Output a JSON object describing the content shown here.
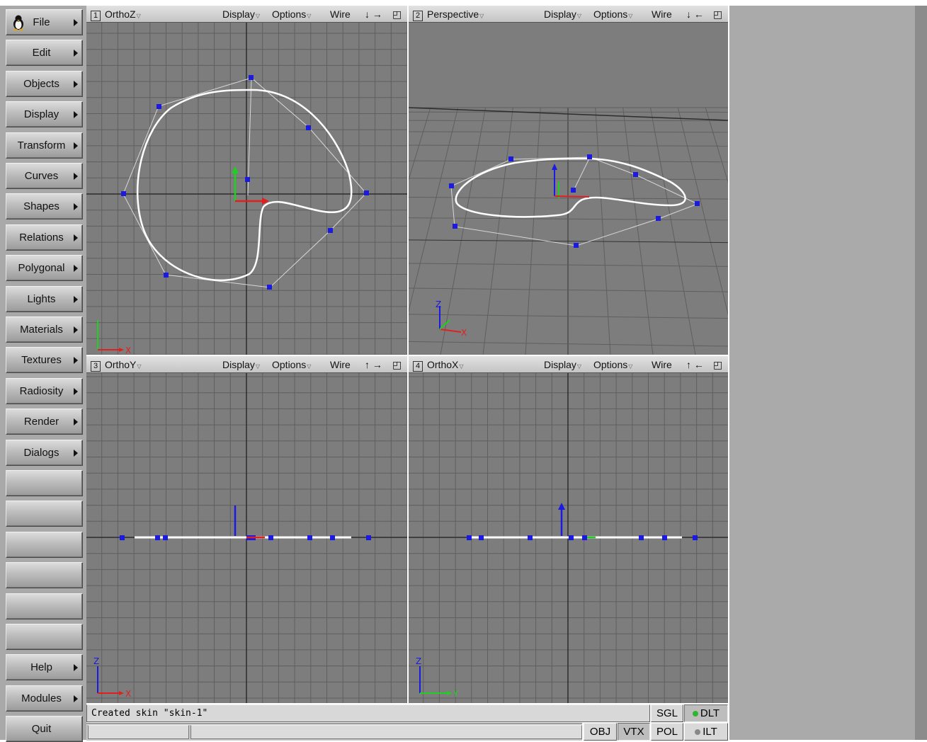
{
  "menu": [
    {
      "label": "File",
      "arrow": true,
      "icon": "tux-icon"
    },
    {
      "label": "Edit",
      "arrow": true
    },
    {
      "label": "Objects",
      "arrow": true
    },
    {
      "label": "Display",
      "arrow": true
    },
    {
      "label": "Transform",
      "arrow": true
    },
    {
      "label": "Curves",
      "arrow": true
    },
    {
      "label": "Shapes",
      "arrow": true
    },
    {
      "label": "Relations",
      "arrow": true
    },
    {
      "label": "Polygonal",
      "arrow": true
    },
    {
      "label": "Lights",
      "arrow": true
    },
    {
      "label": "Materials",
      "arrow": true
    },
    {
      "label": "Textures",
      "arrow": true
    },
    {
      "label": "Radiosity",
      "arrow": true
    },
    {
      "label": "Render",
      "arrow": true
    },
    {
      "label": "Dialogs",
      "arrow": true
    },
    {
      "label": "",
      "arrow": false
    },
    {
      "label": "",
      "arrow": false
    },
    {
      "label": "",
      "arrow": false
    },
    {
      "label": "",
      "arrow": false
    },
    {
      "label": "",
      "arrow": false
    },
    {
      "label": "",
      "arrow": false
    },
    {
      "label": "Help",
      "arrow": true
    },
    {
      "label": "Modules",
      "arrow": true
    },
    {
      "label": "Quit",
      "arrow": false
    }
  ],
  "viewports": [
    {
      "num": "1",
      "name": "OrthoZ",
      "display": "Display",
      "options": "Options",
      "mode": "Wire",
      "arrows": "↓ →",
      "axes": [
        "X"
      ]
    },
    {
      "num": "2",
      "name": "Perspective",
      "display": "Display",
      "options": "Options",
      "mode": "Wire",
      "arrows": "↓ ←",
      "axes": [
        "Z",
        "X"
      ]
    },
    {
      "num": "3",
      "name": "OrthoY",
      "display": "Display",
      "options": "Options",
      "mode": "Wire",
      "arrows": "↑ →",
      "axes": [
        "Z",
        "X"
      ]
    },
    {
      "num": "4",
      "name": "OrthoX",
      "display": "Display",
      "options": "Options",
      "mode": "Wire",
      "arrows": "↑ ←",
      "axes": [
        "Z",
        "Y"
      ]
    }
  ],
  "status": {
    "message": "Created skin \"skin-1\"",
    "sgl": "SGL",
    "dlt": "DLT",
    "obj": "OBJ",
    "vtx": "VTX",
    "pol": "POL",
    "ilt": "ILT"
  },
  "colors": {
    "viewport_bg": "#7d7d7d",
    "grid": "#5f5f5f",
    "axis": "#2c2c2c",
    "curve": "#ffffff",
    "control_point": "#1a1ae0",
    "axis_x": "#e02020",
    "axis_y": "#20d020",
    "axis_z": "#1a1ae0",
    "dlt_indicator": "#2fb52f"
  }
}
